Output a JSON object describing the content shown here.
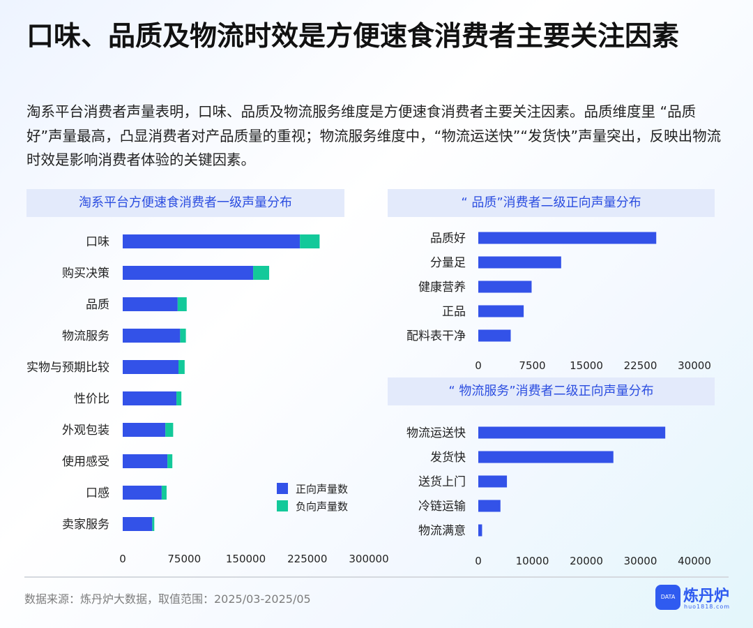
{
  "title": "口味、品质及物流时效是方便速食消费者主要关注因素",
  "subtitle": "淘系平台消费者声量表明，口味、品质及物流服务维度是方便速食消费者主要关注因素。品质维度里 “品质好”声量最高，凸显消费者对产品质量的重视；物流服务维度中，“物流运送快”“发货快”声量突出，反映出物流时效是影响消费者体验的关键因素。",
  "colors": {
    "positive": "#3352e8",
    "negative": "#13c99a",
    "header_bg": "#e3eafb",
    "header_text": "#2b4de0"
  },
  "chart_data": [
    {
      "type": "bar",
      "orientation": "horizontal",
      "stacked": true,
      "title": "淘系平台方便速食消费者一级声量分布",
      "categories": [
        "口味",
        "购买决策",
        "品质",
        "物流服务",
        "实物与预期比较",
        "性价比",
        "外观包装",
        "使用感受",
        "口感",
        "卖家服务"
      ],
      "series": [
        {
          "name": "正向声量数",
          "color": "#3352e8",
          "values": [
            216000,
            159000,
            67000,
            70000,
            68000,
            65500,
            52000,
            54500,
            47500,
            36000
          ]
        },
        {
          "name": "负向声量数",
          "color": "#13c99a",
          "values": [
            24000,
            19500,
            11000,
            7000,
            7500,
            6000,
            9500,
            6000,
            6000,
            2500
          ]
        }
      ],
      "xlim": [
        0,
        300000
      ],
      "xticks": [
        "0",
        "75000",
        "150000",
        "225000",
        "300000"
      ],
      "legend": "bottom-right",
      "grid": false
    },
    {
      "type": "bar",
      "orientation": "horizontal",
      "title": "“ 品质”消费者二级正向声量分布",
      "categories": [
        "品质好",
        "分量足",
        "健康营养",
        "正品",
        "配料表干净"
      ],
      "values": [
        24700,
        11500,
        7400,
        6300,
        4500
      ],
      "xlim": [
        0,
        30000
      ],
      "xticks": [
        "0",
        "7500",
        "15000",
        "22500",
        "30000"
      ],
      "grid": false
    },
    {
      "type": "bar",
      "orientation": "horizontal",
      "title": "“ 物流服务”消费者二级正向声量分布",
      "categories": [
        "物流运送快",
        "发货快",
        "送货上门",
        "冷链运输",
        "物流满意"
      ],
      "values": [
        34600,
        25000,
        5300,
        4100,
        700
      ],
      "xlim": [
        0,
        40000
      ],
      "xticks": [
        "0",
        "10000",
        "20000",
        "30000",
        "40000"
      ],
      "grid": false
    }
  ],
  "footer": {
    "source": "数据来源：炼丹炉大数据，取值范围：2025/03-2025/05"
  },
  "logo": {
    "name": "炼丹炉",
    "url": "huo1818.com",
    "badge": "DATA"
  }
}
